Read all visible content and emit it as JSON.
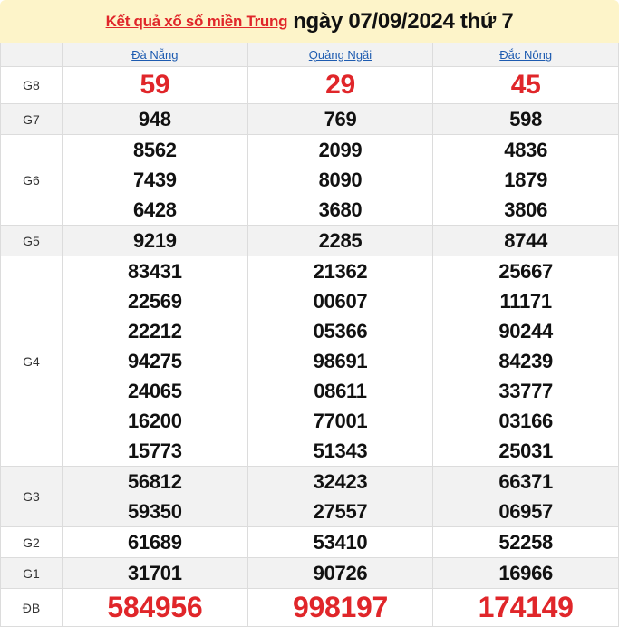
{
  "header": {
    "link_text": "Kết quả xổ số miền Trung",
    "date_text": "ngày 07/09/2024 thứ 7"
  },
  "colors": {
    "accent_red": "#e0262a",
    "link_blue": "#1d5bb0",
    "header_bg": "#fdf4c9"
  },
  "provinces": [
    "Đà Nẵng",
    "Quảng Ngãi",
    "Đắc Nông"
  ],
  "prizes": [
    {
      "label": "G8",
      "highlight": true,
      "values": [
        [
          "59"
        ],
        [
          "29"
        ],
        [
          "45"
        ]
      ]
    },
    {
      "label": "G7",
      "values": [
        [
          "948"
        ],
        [
          "769"
        ],
        [
          "598"
        ]
      ]
    },
    {
      "label": "G6",
      "values": [
        [
          "8562",
          "7439",
          "6428"
        ],
        [
          "2099",
          "8090",
          "3680"
        ],
        [
          "4836",
          "1879",
          "3806"
        ]
      ]
    },
    {
      "label": "G5",
      "values": [
        [
          "9219"
        ],
        [
          "2285"
        ],
        [
          "8744"
        ]
      ]
    },
    {
      "label": "G4",
      "values": [
        [
          "83431",
          "22569",
          "22212",
          "94275",
          "24065",
          "16200",
          "15773"
        ],
        [
          "21362",
          "00607",
          "05366",
          "98691",
          "08611",
          "77001",
          "51343"
        ],
        [
          "25667",
          "11171",
          "90244",
          "84239",
          "33777",
          "03166",
          "25031"
        ]
      ]
    },
    {
      "label": "G3",
      "values": [
        [
          "56812",
          "59350"
        ],
        [
          "32423",
          "27557"
        ],
        [
          "66371",
          "06957"
        ]
      ]
    },
    {
      "label": "G2",
      "values": [
        [
          "61689"
        ],
        [
          "53410"
        ],
        [
          "52258"
        ]
      ]
    },
    {
      "label": "G1",
      "values": [
        [
          "31701"
        ],
        [
          "90726"
        ],
        [
          "16966"
        ]
      ]
    },
    {
      "label": "ĐB",
      "highlight": true,
      "special": true,
      "values": [
        [
          "584956"
        ],
        [
          "998197"
        ],
        [
          "174149"
        ]
      ]
    }
  ]
}
